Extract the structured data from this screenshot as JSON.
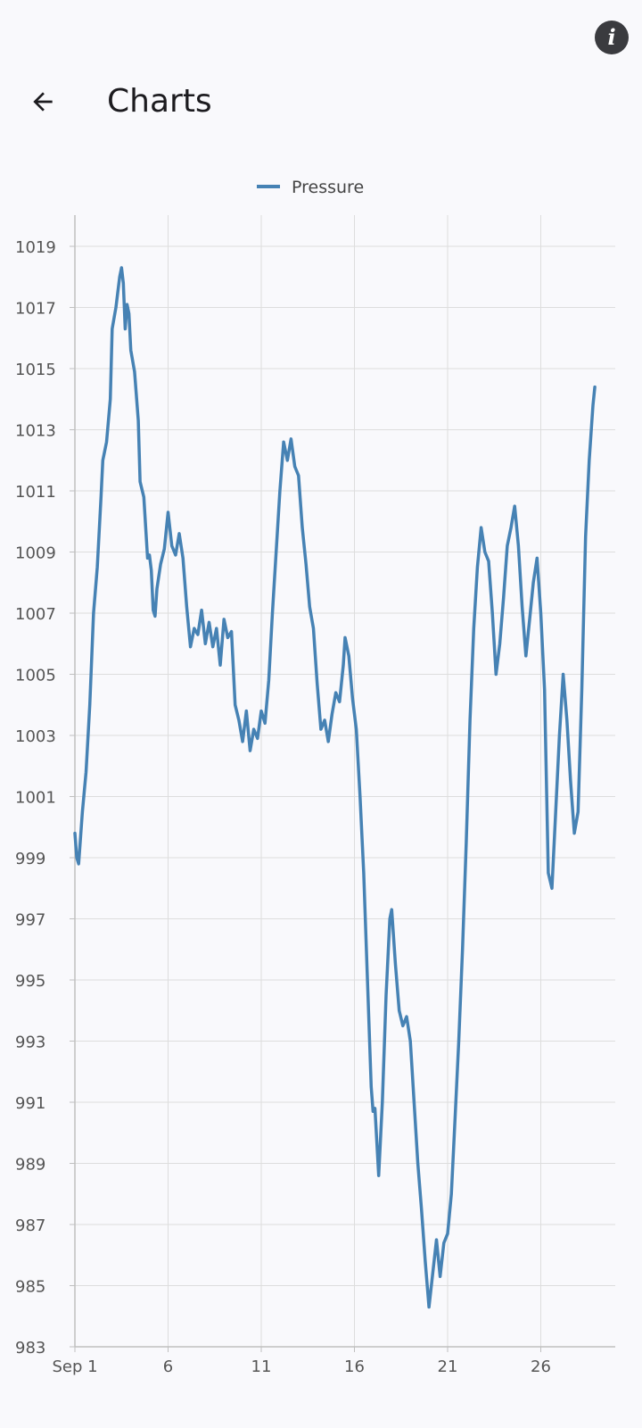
{
  "app_bar": {
    "title": "Charts",
    "back_icon": "arrow-left-icon",
    "info_icon": "info-icon"
  },
  "chart_data": {
    "type": "line",
    "legend": {
      "entries": [
        "Pressure"
      ],
      "placement": "top-center"
    },
    "series": [
      {
        "name": "Pressure",
        "color": "#4682b4",
        "points": [
          [
            1.0,
            999.8
          ],
          [
            1.1,
            999.0
          ],
          [
            1.2,
            998.8
          ],
          [
            1.4,
            1000.5
          ],
          [
            1.6,
            1001.8
          ],
          [
            1.8,
            1004.0
          ],
          [
            2.0,
            1007.0
          ],
          [
            2.2,
            1008.5
          ],
          [
            2.4,
            1010.8
          ],
          [
            2.5,
            1012.0
          ],
          [
            2.7,
            1012.6
          ],
          [
            2.9,
            1014.0
          ],
          [
            3.0,
            1016.3
          ],
          [
            3.2,
            1017.0
          ],
          [
            3.4,
            1018.0
          ],
          [
            3.5,
            1018.3
          ],
          [
            3.6,
            1017.8
          ],
          [
            3.7,
            1016.3
          ],
          [
            3.8,
            1017.1
          ],
          [
            3.9,
            1016.8
          ],
          [
            4.0,
            1015.6
          ],
          [
            4.2,
            1014.9
          ],
          [
            4.4,
            1013.3
          ],
          [
            4.5,
            1011.3
          ],
          [
            4.7,
            1010.8
          ],
          [
            4.8,
            1009.8
          ],
          [
            4.9,
            1008.8
          ],
          [
            5.0,
            1008.9
          ],
          [
            5.1,
            1008.4
          ],
          [
            5.2,
            1007.1
          ],
          [
            5.3,
            1006.9
          ],
          [
            5.4,
            1007.8
          ],
          [
            5.6,
            1008.6
          ],
          [
            5.8,
            1009.1
          ],
          [
            6.0,
            1010.3
          ],
          [
            6.2,
            1009.2
          ],
          [
            6.4,
            1008.9
          ],
          [
            6.6,
            1009.6
          ],
          [
            6.8,
            1008.8
          ],
          [
            7.0,
            1007.2
          ],
          [
            7.2,
            1005.9
          ],
          [
            7.4,
            1006.5
          ],
          [
            7.6,
            1006.3
          ],
          [
            7.8,
            1007.1
          ],
          [
            8.0,
            1006.0
          ],
          [
            8.2,
            1006.7
          ],
          [
            8.4,
            1005.9
          ],
          [
            8.6,
            1006.5
          ],
          [
            8.8,
            1005.3
          ],
          [
            9.0,
            1006.8
          ],
          [
            9.2,
            1006.2
          ],
          [
            9.4,
            1006.4
          ],
          [
            9.6,
            1004.0
          ],
          [
            9.8,
            1003.5
          ],
          [
            10.0,
            1002.8
          ],
          [
            10.2,
            1003.8
          ],
          [
            10.4,
            1002.5
          ],
          [
            10.6,
            1003.2
          ],
          [
            10.8,
            1002.9
          ],
          [
            11.0,
            1003.8
          ],
          [
            11.2,
            1003.4
          ],
          [
            11.4,
            1004.8
          ],
          [
            11.6,
            1007.0
          ],
          [
            11.8,
            1009.0
          ],
          [
            12.0,
            1011.0
          ],
          [
            12.2,
            1012.6
          ],
          [
            12.4,
            1012.0
          ],
          [
            12.6,
            1012.7
          ],
          [
            12.8,
            1011.8
          ],
          [
            13.0,
            1011.5
          ],
          [
            13.2,
            1009.8
          ],
          [
            13.4,
            1008.6
          ],
          [
            13.6,
            1007.2
          ],
          [
            13.8,
            1006.5
          ],
          [
            14.0,
            1004.7
          ],
          [
            14.2,
            1003.2
          ],
          [
            14.4,
            1003.5
          ],
          [
            14.6,
            1002.8
          ],
          [
            14.8,
            1003.7
          ],
          [
            15.0,
            1004.4
          ],
          [
            15.2,
            1004.1
          ],
          [
            15.4,
            1005.3
          ],
          [
            15.5,
            1006.2
          ],
          [
            15.7,
            1005.6
          ],
          [
            15.9,
            1004.2
          ],
          [
            16.1,
            1003.2
          ],
          [
            16.3,
            1001.0
          ],
          [
            16.5,
            998.5
          ],
          [
            16.7,
            995.0
          ],
          [
            16.9,
            991.5
          ],
          [
            17.0,
            990.7
          ],
          [
            17.1,
            990.8
          ],
          [
            17.3,
            988.6
          ],
          [
            17.5,
            991.0
          ],
          [
            17.7,
            994.5
          ],
          [
            17.9,
            997.0
          ],
          [
            18.0,
            997.3
          ],
          [
            18.2,
            995.5
          ],
          [
            18.4,
            994.0
          ],
          [
            18.6,
            993.5
          ],
          [
            18.8,
            993.8
          ],
          [
            19.0,
            993.0
          ],
          [
            19.2,
            991.0
          ],
          [
            19.4,
            989.0
          ],
          [
            19.6,
            987.5
          ],
          [
            19.8,
            985.8
          ],
          [
            20.0,
            984.3
          ],
          [
            20.2,
            985.4
          ],
          [
            20.4,
            986.5
          ],
          [
            20.6,
            985.3
          ],
          [
            20.8,
            986.4
          ],
          [
            21.0,
            986.7
          ],
          [
            21.2,
            988.0
          ],
          [
            21.4,
            990.5
          ],
          [
            21.6,
            993.0
          ],
          [
            21.8,
            996.0
          ],
          [
            22.0,
            999.5
          ],
          [
            22.2,
            1003.5
          ],
          [
            22.4,
            1006.5
          ],
          [
            22.6,
            1008.5
          ],
          [
            22.8,
            1009.8
          ],
          [
            23.0,
            1009.0
          ],
          [
            23.2,
            1008.7
          ],
          [
            23.4,
            1007.0
          ],
          [
            23.6,
            1005.0
          ],
          [
            23.8,
            1006.0
          ],
          [
            24.0,
            1007.5
          ],
          [
            24.2,
            1009.2
          ],
          [
            24.4,
            1009.8
          ],
          [
            24.6,
            1010.5
          ],
          [
            24.8,
            1009.2
          ],
          [
            25.0,
            1007.2
          ],
          [
            25.2,
            1005.6
          ],
          [
            25.4,
            1006.8
          ],
          [
            25.6,
            1008.0
          ],
          [
            25.8,
            1008.8
          ],
          [
            26.0,
            1007.0
          ],
          [
            26.2,
            1004.5
          ],
          [
            26.4,
            998.5
          ],
          [
            26.6,
            998.0
          ],
          [
            26.8,
            1000.5
          ],
          [
            27.0,
            1003.0
          ],
          [
            27.2,
            1005.0
          ],
          [
            27.4,
            1003.5
          ],
          [
            27.6,
            1001.5
          ],
          [
            27.8,
            999.8
          ],
          [
            28.0,
            1000.5
          ],
          [
            28.2,
            1004.5
          ],
          [
            28.4,
            1009.5
          ],
          [
            28.6,
            1012.0
          ],
          [
            28.8,
            1013.8
          ],
          [
            28.9,
            1014.4
          ]
        ]
      }
    ],
    "x_ticks": [
      {
        "value": 1,
        "label": "Sep 1"
      },
      {
        "value": 6,
        "label": "6"
      },
      {
        "value": 11,
        "label": "11"
      },
      {
        "value": 16,
        "label": "16"
      },
      {
        "value": 21,
        "label": "21"
      },
      {
        "value": 26,
        "label": "26"
      }
    ],
    "y_ticks": [
      983,
      985,
      987,
      989,
      991,
      993,
      995,
      997,
      999,
      1001,
      1003,
      1005,
      1007,
      1009,
      1011,
      1013,
      1015,
      1017,
      1019
    ],
    "xlim": [
      1,
      29
    ],
    "ylim": [
      983,
      1020
    ],
    "grid": true,
    "colors": {
      "grid": "#dddddd",
      "axis": "#bfbfbf",
      "tick_text": "#555555"
    }
  }
}
